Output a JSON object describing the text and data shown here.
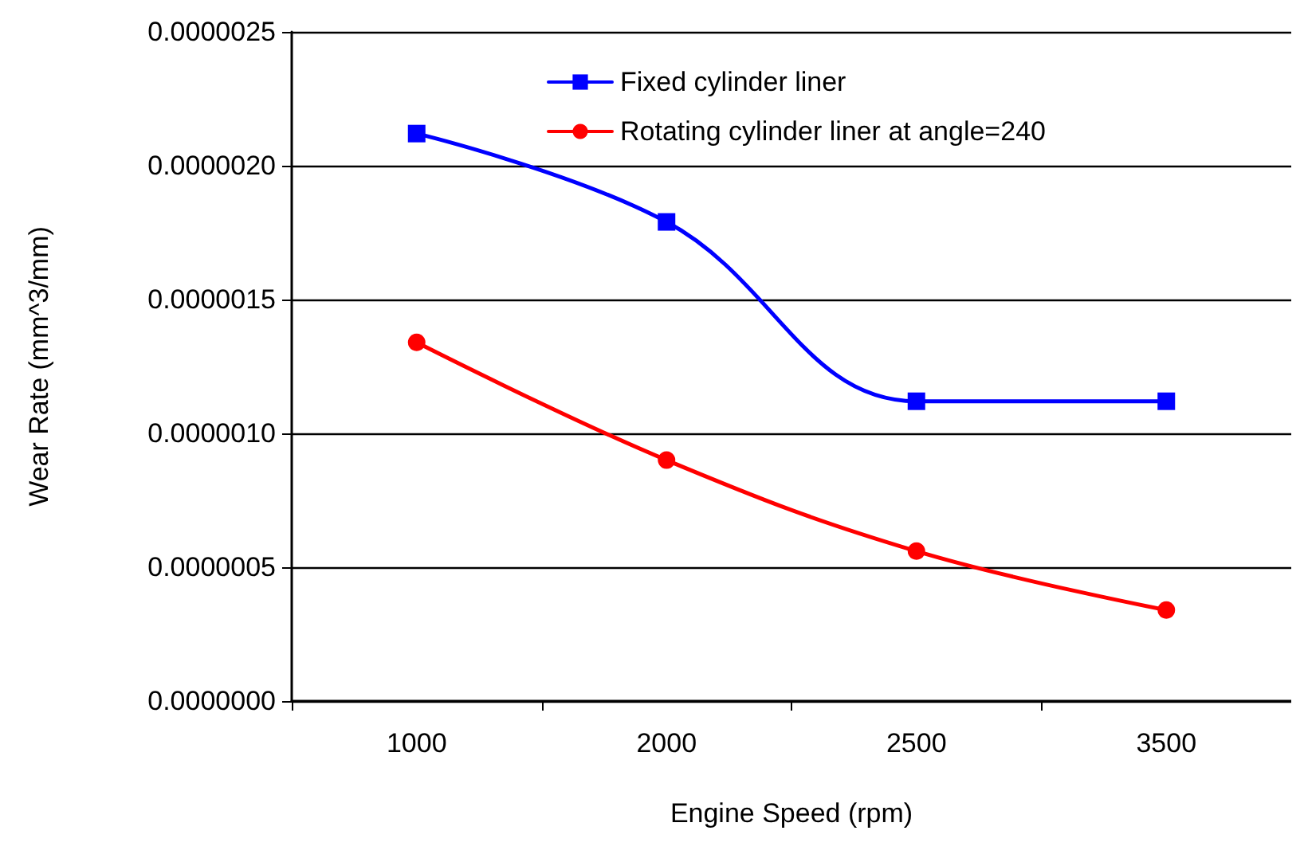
{
  "chart_data": {
    "type": "line",
    "xlabel": "Engine Speed (rpm)",
    "ylabel": "Wear Rate (mm^3/mm)",
    "categories": [
      "1000",
      "2000",
      "2500",
      "3500"
    ],
    "series": [
      {
        "name": "Fixed cylinder liner",
        "color": "#0000ff",
        "marker": "square",
        "values": [
          2.12e-06,
          1.79e-06,
          1.12e-06,
          1.12e-06
        ]
      },
      {
        "name": "Rotating cylinder liner at angle=240",
        "color": "#ff0000",
        "marker": "circle",
        "values": [
          1.34e-06,
          9e-07,
          5.6e-07,
          3.4e-07
        ]
      }
    ],
    "ylim": [
      0,
      2.5e-06
    ],
    "yticks": [
      {
        "value": 0,
        "label": "0.0000000"
      },
      {
        "value": 5e-07,
        "label": "0.0000005"
      },
      {
        "value": 1e-06,
        "label": "0.0000010"
      },
      {
        "value": 1.5e-06,
        "label": "0.0000015"
      },
      {
        "value": 2e-06,
        "label": "0.0000020"
      },
      {
        "value": 2.5e-06,
        "label": "0.0000025"
      }
    ],
    "grid": "y",
    "legend": "top",
    "line_style": "solid"
  }
}
